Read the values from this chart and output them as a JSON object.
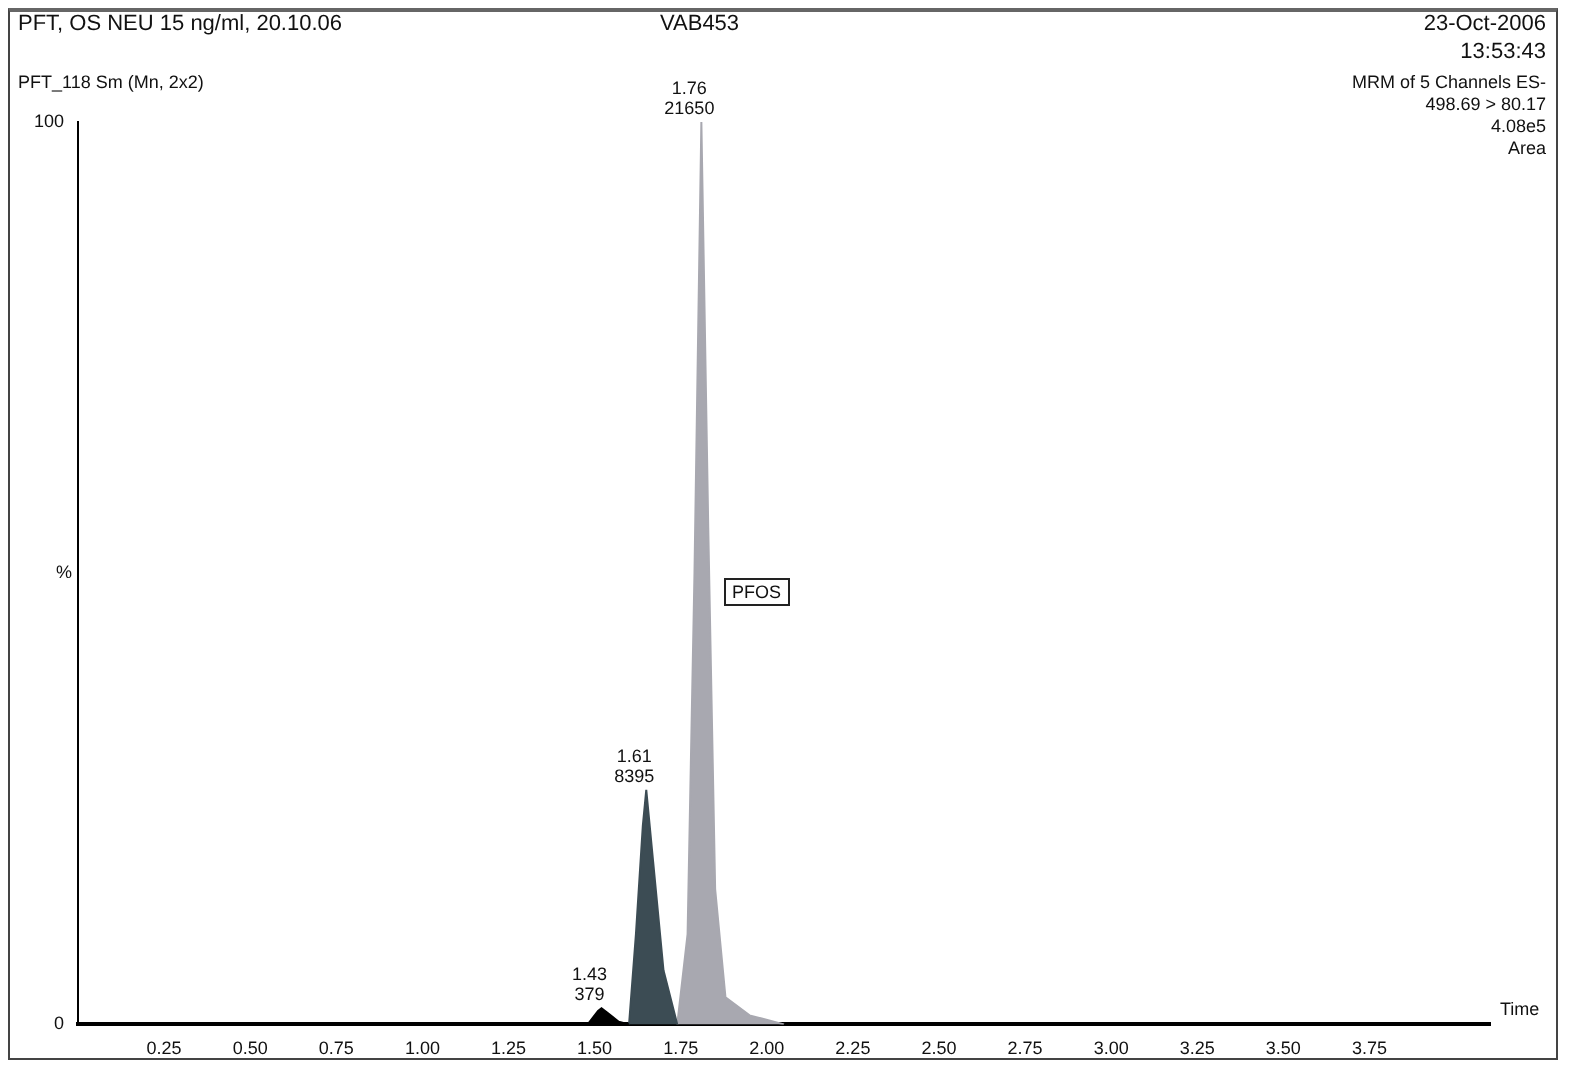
{
  "chart_data": {
    "type": "area",
    "title": "PFT, OS NEU 15 ng/ml, 20.10.06",
    "xlabel": "Time",
    "ylabel": "%",
    "annotations": [
      "VAB453",
      "23-Oct-2006",
      "13:53:43",
      "PFT_118 Sm (Mn, 2x2)",
      "MRM of 5 Channels ES-",
      "498.69 > 80.17",
      "4.08e5",
      "Area",
      "PFOS",
      {
        "text": "1.43\n379",
        "x": 1.52,
        "y": 1.8
      },
      {
        "text": "1.61\n8395",
        "x": 1.65,
        "y": 26
      },
      {
        "text": "1.76\n21650",
        "x": 1.81,
        "y": 100
      }
    ],
    "series": [
      {
        "color": "#000000",
        "x": [
          1.48,
          1.51,
          1.52,
          1.54,
          1.57,
          1.6
        ],
        "values": [
          0,
          1.5,
          1.8,
          1.2,
          0.3,
          0
        ]
      },
      {
        "color": "#3c4c54",
        "x": [
          1.6,
          1.62,
          1.64,
          1.65,
          1.67,
          1.7,
          1.74
        ],
        "values": [
          0,
          10,
          22,
          26,
          18,
          6,
          0
        ]
      },
      {
        "color": "#a8a8b0",
        "x": [
          1.74,
          1.77,
          1.79,
          1.81,
          1.83,
          1.85,
          1.88,
          1.95,
          2.05
        ],
        "values": [
          0,
          10,
          50,
          100,
          55,
          15,
          3,
          1,
          0
        ]
      }
    ],
    "xlim": [
      0,
      4.1
    ],
    "xticks": [
      {
        "value": 0.25,
        "label": "0.25"
      },
      {
        "value": 0.5,
        "label": "0.50"
      },
      {
        "value": 0.75,
        "label": "0.75"
      },
      {
        "value": 1,
        "label": "1.00"
      },
      {
        "value": 1.25,
        "label": "1.25"
      },
      {
        "value": 1.5,
        "label": "1.50"
      },
      {
        "value": 1.75,
        "label": "1.75"
      },
      {
        "value": 2,
        "label": "2.00"
      },
      {
        "value": 2.25,
        "label": "2.25"
      },
      {
        "value": 2.5,
        "label": "2.50"
      },
      {
        "value": 2.75,
        "label": "2.75"
      },
      {
        "value": 3,
        "label": "3.00"
      },
      {
        "value": 3.25,
        "label": "3.25"
      },
      {
        "value": 3.5,
        "label": "3.50"
      },
      {
        "value": 3.75,
        "label": "3.75"
      }
    ],
    "ylim": [
      0,
      100
    ],
    "yticks": [
      0,
      100
    ],
    "grid": false,
    "legend": false,
    "marker": "none"
  }
}
